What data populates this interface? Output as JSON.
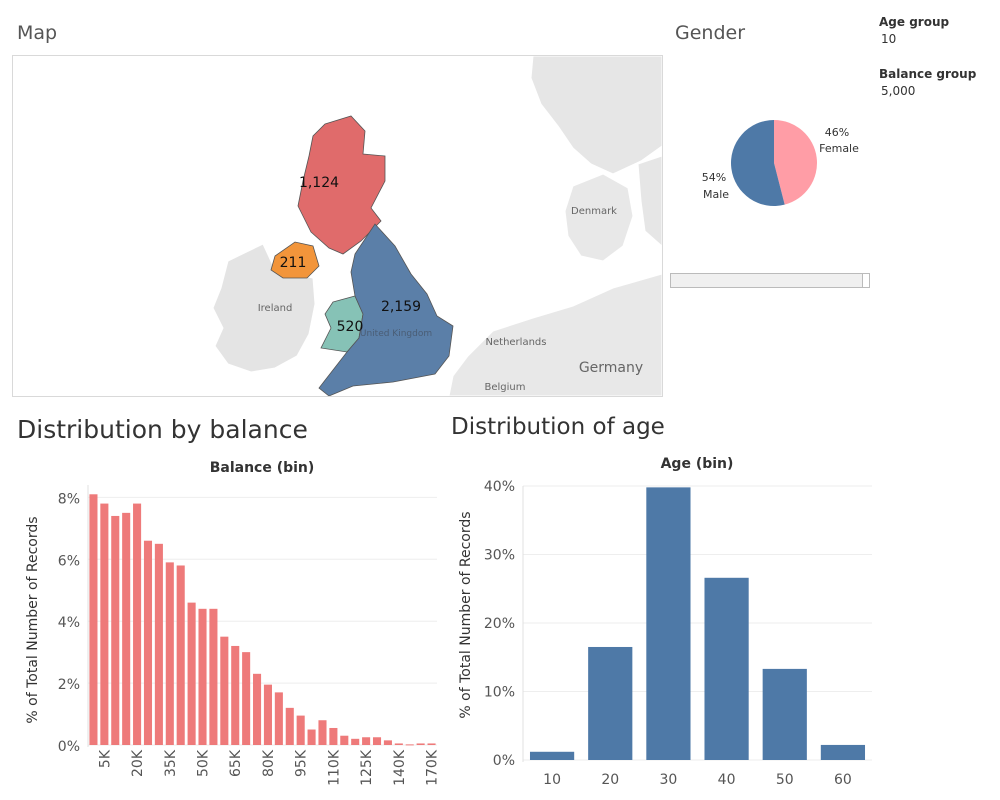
{
  "map": {
    "title": "Map",
    "regions": [
      {
        "name": "Scotland",
        "label": "1,124",
        "color": "#e06b6b"
      },
      {
        "name": "Northern Ireland",
        "label": "211",
        "color": "#f2953b"
      },
      {
        "name": "Wales",
        "label": "520",
        "color": "#86c2b6"
      },
      {
        "name": "England",
        "label": "2,159",
        "color": "#5b7fa8"
      }
    ],
    "place_labels": [
      "Denmark",
      "Ireland",
      "United Kingdom",
      "Netherlands",
      "Germany",
      "Belgium"
    ]
  },
  "gender": {
    "title": "Gender",
    "colors": {
      "Female": "#ff9da6",
      "Male": "#4e79a7"
    },
    "chart_data": {
      "type": "pie",
      "slices": [
        {
          "label": "Female",
          "pct": "46%",
          "value": 46
        },
        {
          "label": "Male",
          "pct": "54%",
          "value": 54
        }
      ]
    }
  },
  "filters": {
    "age_group_label": "Age group",
    "age_group_value": "10",
    "balance_group_label": "Balance group",
    "balance_group_value": "5,000"
  },
  "balance_chart": {
    "heading": "Distribution by balance",
    "color": "#ee7a7a",
    "chart_data": {
      "type": "bar",
      "title": "Balance (bin)",
      "ylabel": "% of Total Number of Records",
      "ylim": [
        0,
        8.4
      ],
      "yticks": [
        "0%",
        "2%",
        "4%",
        "6%",
        "8%"
      ],
      "xtick_labels": [
        "5K",
        "20K",
        "35K",
        "50K",
        "65K",
        "80K",
        "95K",
        "110K",
        "125K",
        "140K",
        "170K"
      ],
      "values": [
        8.1,
        7.8,
        7.4,
        7.5,
        7.8,
        6.6,
        6.5,
        5.9,
        5.8,
        4.6,
        4.4,
        4.4,
        3.5,
        3.2,
        3.0,
        2.3,
        1.95,
        1.7,
        1.2,
        0.95,
        0.5,
        0.8,
        0.55,
        0.3,
        0.2,
        0.25,
        0.25,
        0.15,
        0.05,
        0.02,
        0.05,
        0.05
      ]
    }
  },
  "age_chart": {
    "heading": "Distribution of age",
    "color": "#4e79a7",
    "chart_data": {
      "type": "bar",
      "title": "Age (bin)",
      "ylabel": "% of Total Number of Records",
      "ylim": [
        0,
        40
      ],
      "yticks": [
        "0%",
        "10%",
        "20%",
        "30%",
        "40%"
      ],
      "categories": [
        "10",
        "20",
        "30",
        "40",
        "50",
        "60"
      ],
      "values": [
        1.2,
        16.5,
        39.8,
        26.6,
        13.3,
        2.2
      ]
    }
  }
}
